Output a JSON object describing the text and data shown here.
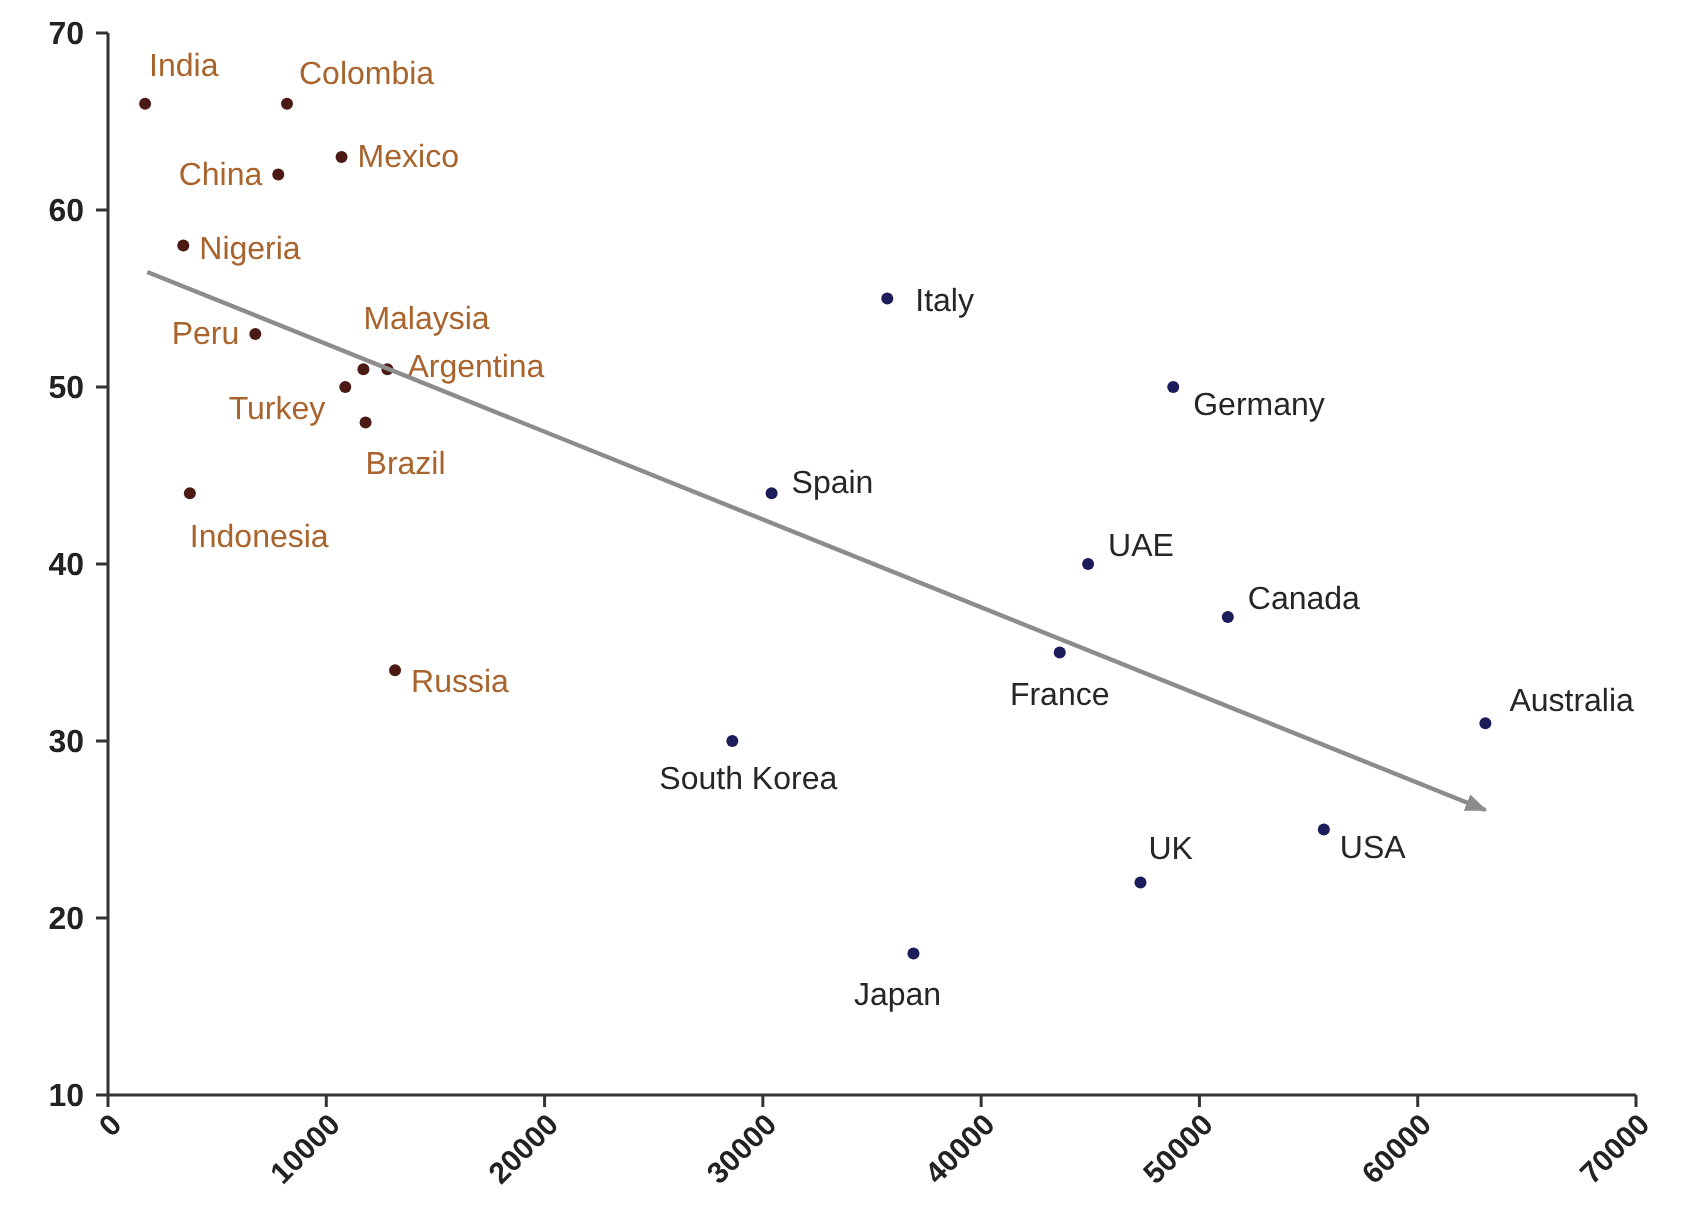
{
  "chart_data": {
    "type": "scatter",
    "xlim": [
      0,
      70000
    ],
    "ylim": [
      10,
      70
    ],
    "xticks": [
      0,
      10000,
      20000,
      30000,
      40000,
      50000,
      60000,
      70000
    ],
    "yticks": [
      10,
      20,
      30,
      40,
      50,
      60,
      70
    ],
    "grid": false,
    "series": [
      {
        "marker": "circle",
        "color": "#4b1a14",
        "x": [
          1700,
          8200,
          7800,
          10700,
          3450,
          6750,
          11700,
          10870,
          12800,
          11800,
          3750,
          13150
        ],
        "values": [
          66,
          66,
          62,
          63,
          58,
          53,
          51,
          50,
          51,
          48,
          44,
          34
        ],
        "value_labels": [
          "India",
          "Colombia",
          "China",
          "Mexico",
          "Nigeria",
          "Peru",
          "Malaysia",
          "Turkey",
          "Argentina",
          "Brazil",
          "Indonesia",
          "Russia"
        ]
      },
      {
        "marker": "circle",
        "color": "#1c1c5a",
        "x": [
          35700,
          48800,
          30400,
          44900,
          51300,
          43600,
          63100,
          55700,
          47300,
          36900,
          28600
        ],
        "values": [
          55,
          50,
          44,
          40,
          37,
          35,
          31,
          25,
          22,
          18,
          30
        ],
        "value_labels": [
          "Italy",
          "Germany",
          "Spain",
          "UAE",
          "Canada",
          "France",
          "Australia",
          "USA",
          "UK",
          "Japan",
          "South Korea"
        ]
      },
      {
        "type": "line",
        "marker": "none",
        "color": "#8c8c8c",
        "line_style": "solid",
        "x": [
          1800,
          63100
        ],
        "values": [
          56.5,
          26.1
        ]
      }
    ]
  }
}
